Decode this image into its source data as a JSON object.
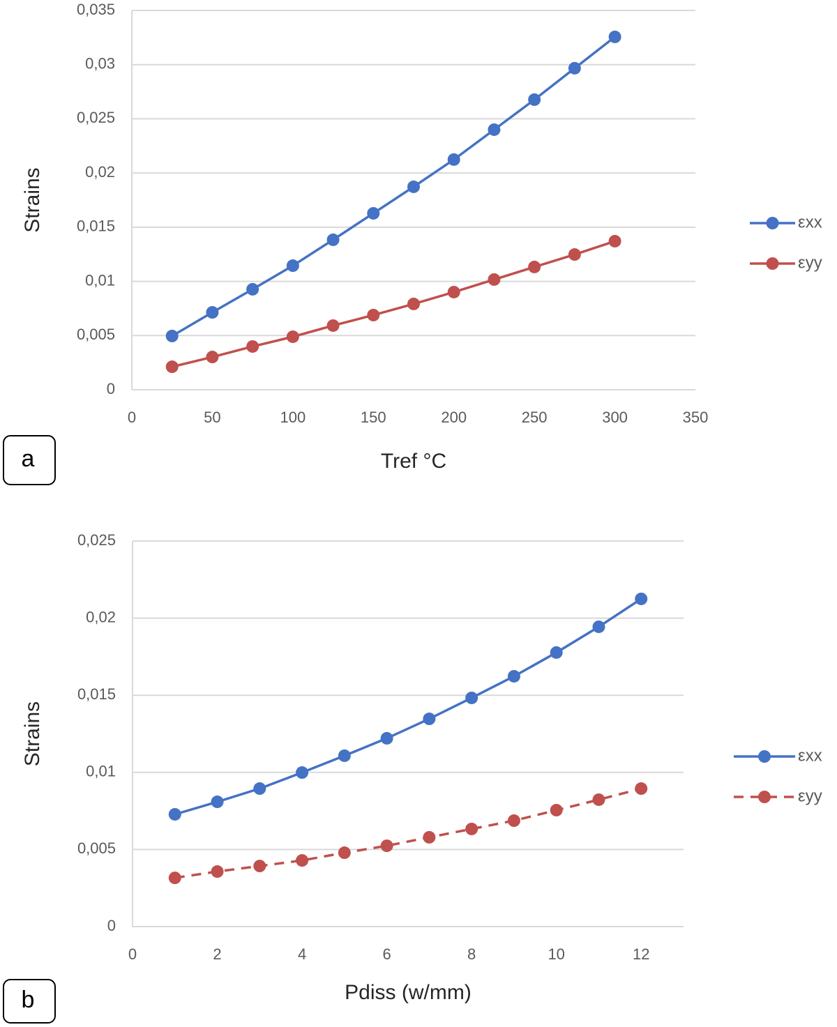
{
  "chart_data": [
    {
      "type": "line",
      "panel_label": "a",
      "y_label": "Strains",
      "x_label": "Tref °C",
      "x": [
        25,
        50,
        75,
        100,
        125,
        150,
        175,
        200,
        225,
        250,
        275,
        300
      ],
      "series": [
        {
          "name": "εxx",
          "color": "#4472c4",
          "line_style": "solid",
          "values": [
            0.00496,
            0.00714,
            0.00927,
            0.01145,
            0.01384,
            0.01628,
            0.01873,
            0.02124,
            0.024,
            0.02677,
            0.02967,
            0.03256
          ]
        },
        {
          "name": "εyy",
          "color": "#c0504d",
          "line_style": "solid",
          "values": [
            0.00212,
            0.00302,
            0.00399,
            0.00489,
            0.00592,
            0.00689,
            0.00792,
            0.00901,
            0.01017,
            0.01133,
            0.01248,
            0.01371
          ]
        }
      ],
      "xlim": [
        0,
        350
      ],
      "xticks": [
        0,
        50,
        100,
        150,
        200,
        250,
        300,
        350
      ],
      "ylim": [
        0,
        0.035
      ],
      "yticks": [
        0,
        {
          "value": 0.005,
          "label": "0,005"
        },
        {
          "value": 0.01,
          "label": "0,01"
        },
        {
          "value": 0.015,
          "label": "0,015"
        },
        {
          "value": 0.02,
          "label": "0,02"
        },
        {
          "value": 0.025,
          "label": "0,025"
        },
        {
          "value": 0.03,
          "label": "0,03"
        },
        {
          "value": 0.035,
          "label": "0,035"
        }
      ],
      "grid": true,
      "legend": "right"
    },
    {
      "type": "line",
      "panel_label": "b",
      "y_label": "Strains",
      "x_label": "Pdiss (w/mm)",
      "x": [
        1,
        2,
        3,
        4,
        5,
        6,
        7,
        8,
        9,
        10,
        11,
        12
      ],
      "series": [
        {
          "name": "εxx",
          "color": "#4472c4",
          "line_style": "solid",
          "values": [
            0.00728,
            0.00809,
            0.00895,
            0.00999,
            0.01108,
            0.01221,
            0.01347,
            0.01483,
            0.01623,
            0.01777,
            0.01944,
            0.02125
          ]
        },
        {
          "name": "εyy",
          "color": "#c0504d",
          "line_style": "dashed",
          "values": [
            0.00316,
            0.00357,
            0.00393,
            0.00429,
            0.00479,
            0.00524,
            0.00579,
            0.00633,
            0.00687,
            0.00755,
            0.00823,
            0.00895
          ]
        }
      ],
      "xlim": [
        0,
        13
      ],
      "xticks": [
        0,
        2,
        4,
        6,
        8,
        10,
        12
      ],
      "ylim": [
        0,
        0.025
      ],
      "yticks": [
        0,
        {
          "value": 0.005,
          "label": "0,005"
        },
        {
          "value": 0.01,
          "label": "0,01"
        },
        {
          "value": 0.015,
          "label": "0,015"
        },
        {
          "value": 0.02,
          "label": "0,02"
        },
        {
          "value": 0.025,
          "label": "0,025"
        }
      ],
      "grid": true,
      "legend": "right"
    }
  ]
}
